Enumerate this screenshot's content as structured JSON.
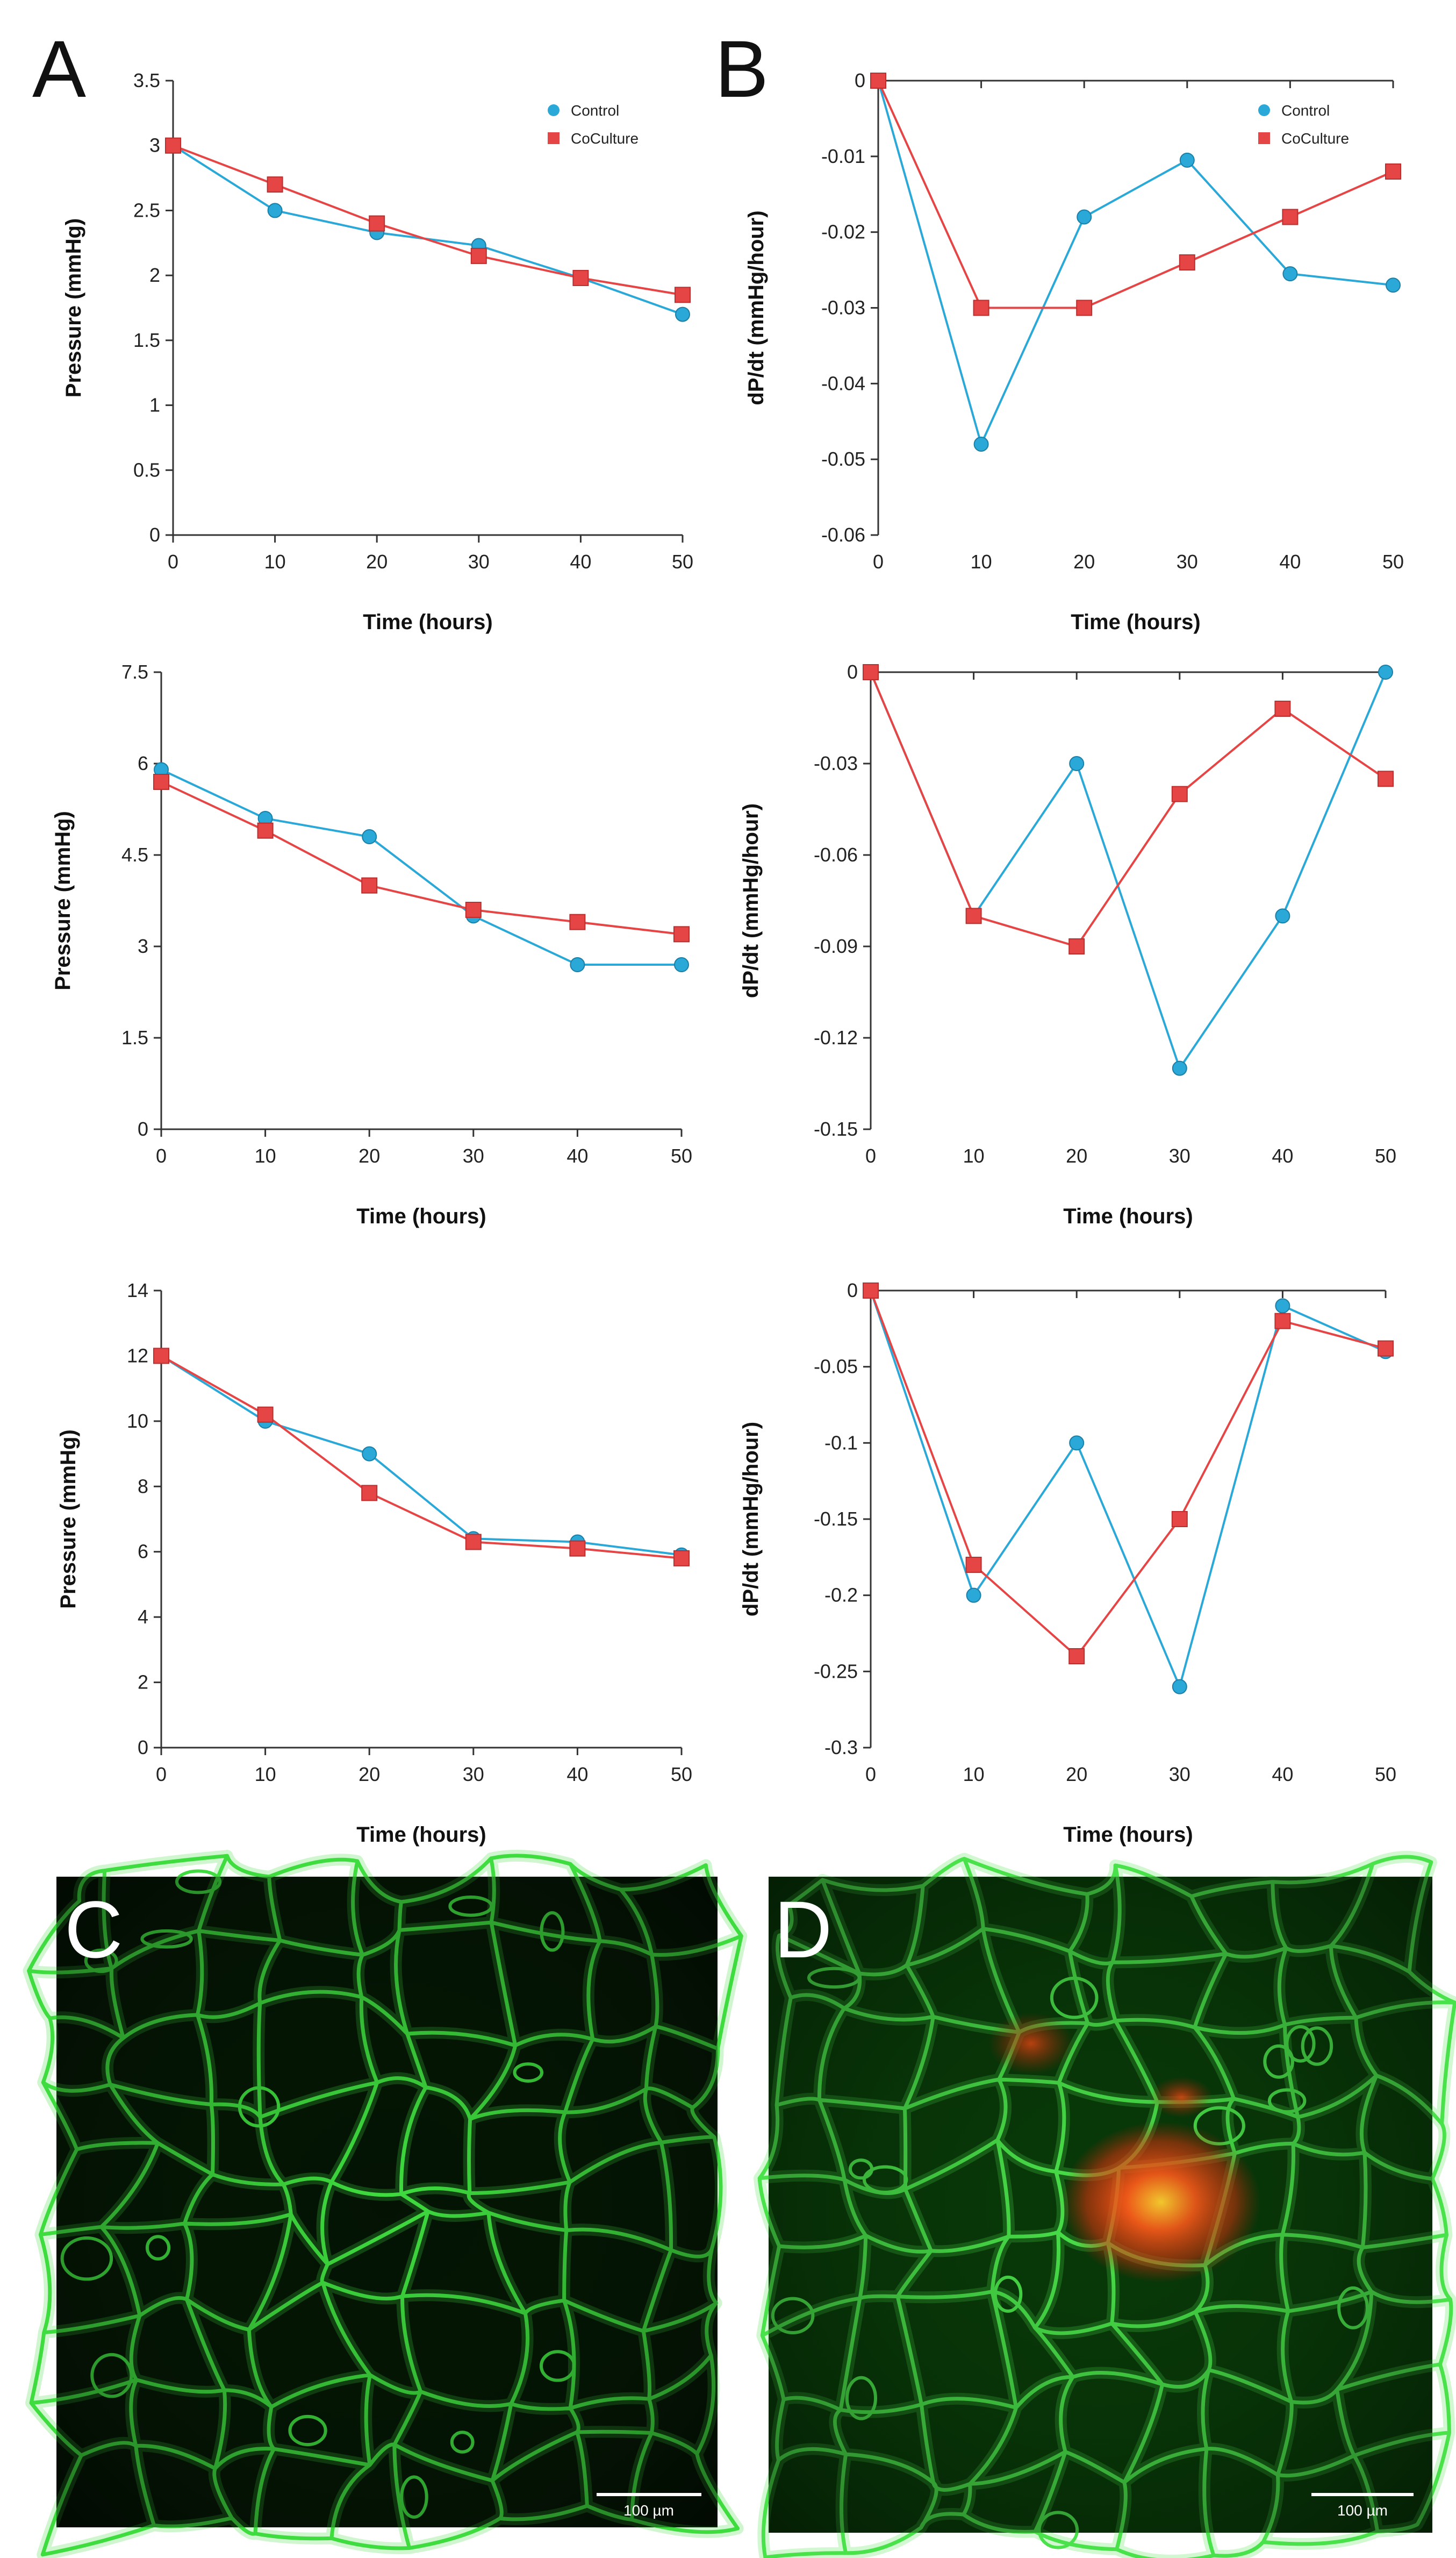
{
  "figure": {
    "panel_letters": [
      "A",
      "B",
      "C",
      "D"
    ],
    "colors": {
      "control": "#2aa8d8",
      "coculture": "#e64545",
      "axis": "#333333",
      "text": "#111111"
    },
    "micrographs": [
      {
        "letter": "C",
        "scale_bar": "100 µm"
      },
      {
        "letter": "D",
        "scale_bar": "100 µm"
      }
    ]
  },
  "chart_data": [
    {
      "type": "line",
      "xlabel": "Time (hours)",
      "ylabel": "Pressure (mmHg)",
      "x": [
        0,
        10,
        20,
        30,
        40,
        50
      ],
      "xticks": [
        "0",
        "10",
        "20",
        "30",
        "40",
        "50"
      ],
      "ylim": [
        0,
        3.5
      ],
      "yticks": [
        "0",
        "0.5",
        "1",
        "1.5",
        "2",
        "2.5",
        "3",
        "3.5"
      ],
      "legend": [
        "Control",
        "CoCulture"
      ],
      "series": [
        {
          "name": "Control",
          "values": [
            3.0,
            2.5,
            2.33,
            2.23,
            1.98,
            1.7
          ]
        },
        {
          "name": "CoCulture",
          "values": [
            3.0,
            2.7,
            2.4,
            2.15,
            1.98,
            1.85
          ]
        }
      ]
    },
    {
      "type": "line",
      "xlabel": "Time (hours)",
      "ylabel": "dP/dt (mmHg/hour)",
      "x": [
        0,
        10,
        20,
        30,
        40,
        50
      ],
      "xticks": [
        "0",
        "10",
        "20",
        "30",
        "40",
        "50"
      ],
      "ylim": [
        -0.06,
        0
      ],
      "yticks": [
        "0",
        "-0.01",
        "-0.02",
        "-0.03",
        "-0.04",
        "-0.05",
        "-0.06"
      ],
      "legend": [
        "Control",
        "CoCulture"
      ],
      "series": [
        {
          "name": "Control",
          "values": [
            0,
            -0.048,
            -0.018,
            -0.0105,
            -0.0255,
            -0.027
          ]
        },
        {
          "name": "CoCulture",
          "values": [
            0,
            -0.03,
            -0.03,
            -0.024,
            -0.018,
            -0.012
          ]
        }
      ]
    },
    {
      "type": "line",
      "xlabel": "Time (hours)",
      "ylabel": "Pressure (mmHg)",
      "x": [
        0,
        10,
        20,
        30,
        40,
        50
      ],
      "xticks": [
        "0",
        "10",
        "20",
        "30",
        "40",
        "50"
      ],
      "ylim": [
        0,
        7.5
      ],
      "yticks": [
        "0",
        "1.5",
        "3",
        "4.5",
        "6",
        "7.5"
      ],
      "series": [
        {
          "name": "Control",
          "values": [
            5.9,
            5.1,
            4.8,
            3.5,
            2.7,
            2.7
          ]
        },
        {
          "name": "CoCulture",
          "values": [
            5.7,
            4.9,
            4.0,
            3.6,
            3.4,
            3.2
          ]
        }
      ]
    },
    {
      "type": "line",
      "xlabel": "Time (hours)",
      "ylabel": "dP/dt (mmHg/hour)",
      "x": [
        0,
        10,
        20,
        30,
        40,
        50
      ],
      "xticks": [
        "0",
        "10",
        "20",
        "30",
        "40",
        "50"
      ],
      "ylim": [
        -0.15,
        0
      ],
      "yticks": [
        "0",
        "-0.03",
        "-0.06",
        "-0.09",
        "-0.12",
        "-0.15"
      ],
      "series": [
        {
          "name": "Control",
          "values": [
            0,
            -0.08,
            -0.03,
            -0.13,
            -0.08,
            0
          ]
        },
        {
          "name": "CoCulture",
          "values": [
            0,
            -0.08,
            -0.09,
            -0.04,
            -0.012,
            -0.035
          ]
        }
      ]
    },
    {
      "type": "line",
      "xlabel": "Time (hours)",
      "ylabel": "Pressure (mmHg)",
      "x": [
        0,
        10,
        20,
        30,
        40,
        50
      ],
      "xticks": [
        "0",
        "10",
        "20",
        "30",
        "40",
        "50"
      ],
      "ylim": [
        0,
        14
      ],
      "yticks": [
        "0",
        "2",
        "4",
        "6",
        "8",
        "10",
        "12",
        "14"
      ],
      "series": [
        {
          "name": "Control",
          "values": [
            12,
            10,
            9,
            6.4,
            6.3,
            5.9
          ]
        },
        {
          "name": "CoCulture",
          "values": [
            12,
            10.2,
            7.8,
            6.3,
            6.1,
            5.8
          ]
        }
      ]
    },
    {
      "type": "line",
      "xlabel": "Time (hours)",
      "ylabel": "dP/dt (mmHg/hour)",
      "x": [
        0,
        10,
        20,
        30,
        40,
        50
      ],
      "xticks": [
        "0",
        "10",
        "20",
        "30",
        "40",
        "50"
      ],
      "ylim": [
        -0.3,
        0
      ],
      "yticks": [
        "0",
        "-0.05",
        "-0.1",
        "-0.15",
        "-0.2",
        "-0.25",
        "-0.3"
      ],
      "series": [
        {
          "name": "Control",
          "values": [
            0,
            -0.2,
            -0.1,
            -0.26,
            -0.01,
            -0.04
          ]
        },
        {
          "name": "CoCulture",
          "values": [
            0,
            -0.18,
            -0.24,
            -0.15,
            -0.02,
            -0.038
          ]
        }
      ]
    }
  ]
}
